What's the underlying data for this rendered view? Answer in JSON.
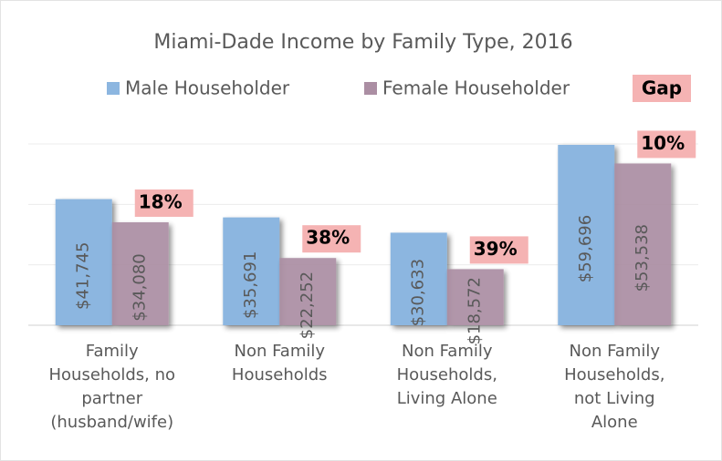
{
  "chart_data": {
    "type": "bar",
    "title": "Miami-Dade Income by Family Type, 2016",
    "categories": [
      "Family Households, no partner (husband/wife)",
      "Non Family Households",
      "Non Family Households, Living Alone",
      "Non Family Households, not Living Alone"
    ],
    "series": [
      {
        "name": "Male Householder",
        "color": "#8cb6e0",
        "values": [
          41745,
          35691,
          30633,
          59696
        ],
        "value_labels": [
          "$41,745",
          "$35,691",
          "$30,633",
          "$59,696"
        ]
      },
      {
        "name": "Female Householder",
        "color": "#ab8ea3",
        "values": [
          34080,
          22252,
          18572,
          53538
        ],
        "value_labels": [
          "$34,080",
          "$22,252",
          "$18,572",
          "$53,538"
        ]
      }
    ],
    "gap": {
      "name": "Gap",
      "color": "#f5b3b3",
      "values": [
        18,
        38,
        39,
        10
      ],
      "value_labels": [
        "18%",
        "38%",
        "39%",
        "10%"
      ]
    },
    "ylim": [
      0,
      60000
    ],
    "yticks": [
      0,
      20000,
      40000,
      60000
    ],
    "grid": true
  }
}
